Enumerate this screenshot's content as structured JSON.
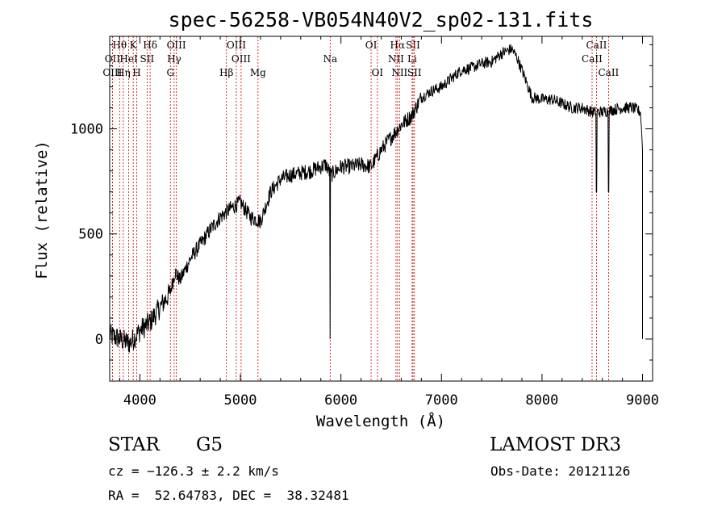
{
  "chart_data": {
    "type": "line",
    "title": "spec-56258-VB054N40V2_sp02-131.fits",
    "xlabel": "Wavelength (Å)",
    "ylabel": "Flux (relative)",
    "xlim": [
      3700,
      9100
    ],
    "ylim": [
      -200,
      1440
    ],
    "xticks": [
      4000,
      5000,
      6000,
      7000,
      8000,
      9000
    ],
    "xtick_labels": [
      "4000",
      "5000",
      "6000",
      "7000",
      "8000",
      "9000"
    ],
    "yticks": [
      0,
      500,
      1000
    ],
    "ytick_labels": [
      "0",
      "500",
      "1000"
    ],
    "series": [
      {
        "name": "flux",
        "color": "#000000",
        "anchors": [
          [
            3700,
            20
          ],
          [
            3800,
            0
          ],
          [
            3900,
            -20
          ],
          [
            4000,
            40
          ],
          [
            4100,
            80
          ],
          [
            4200,
            150
          ],
          [
            4300,
            220
          ],
          [
            4350,
            320
          ],
          [
            4400,
            280
          ],
          [
            4500,
            380
          ],
          [
            4600,
            450
          ],
          [
            4700,
            520
          ],
          [
            4800,
            580
          ],
          [
            4900,
            620
          ],
          [
            5000,
            650
          ],
          [
            5100,
            580
          ],
          [
            5200,
            560
          ],
          [
            5300,
            700
          ],
          [
            5400,
            760
          ],
          [
            5500,
            780
          ],
          [
            5600,
            790
          ],
          [
            5700,
            800
          ],
          [
            5800,
            820
          ],
          [
            5850,
            830
          ],
          [
            5900,
            780
          ],
          [
            6000,
            820
          ],
          [
            6100,
            820
          ],
          [
            6200,
            830
          ],
          [
            6300,
            820
          ],
          [
            6400,
            900
          ],
          [
            6500,
            960
          ],
          [
            6600,
            1020
          ],
          [
            6700,
            1060
          ],
          [
            6800,
            1150
          ],
          [
            6900,
            1180
          ],
          [
            7000,
            1200
          ],
          [
            7100,
            1240
          ],
          [
            7200,
            1280
          ],
          [
            7300,
            1290
          ],
          [
            7400,
            1310
          ],
          [
            7500,
            1320
          ],
          [
            7600,
            1360
          ],
          [
            7700,
            1380
          ],
          [
            7750,
            1340
          ],
          [
            7800,
            1280
          ],
          [
            7900,
            1150
          ],
          [
            8000,
            1140
          ],
          [
            8100,
            1140
          ],
          [
            8200,
            1120
          ],
          [
            8300,
            1100
          ],
          [
            8400,
            1100
          ],
          [
            8500,
            1080
          ],
          [
            8600,
            1080
          ],
          [
            8700,
            1090
          ],
          [
            8800,
            1100
          ],
          [
            8900,
            1100
          ],
          [
            8980,
            1080
          ],
          [
            9000,
            900
          ]
        ],
        "absorptions": [
          [
            5892,
            0
          ],
          [
            8542,
            700
          ],
          [
            8662,
            700
          ]
        ],
        "endpoint": [
          9000,
          0
        ]
      }
    ],
    "line_markers": [
      {
        "name": "Hθ",
        "wavelength": 3798,
        "row": 1
      },
      {
        "name": "OII",
        "wavelength": 3727,
        "row": 2
      },
      {
        "name": "OIII",
        "wavelength": 3727,
        "row": 3
      },
      {
        "name": "K",
        "wavelength": 3934,
        "row": 1
      },
      {
        "name": "HeI",
        "wavelength": 3889,
        "row": 2
      },
      {
        "name": "Hη",
        "wavelength": 3835,
        "row": 3
      },
      {
        "name": "H",
        "wavelength": 3969,
        "row": 3
      },
      {
        "name": "Hδ",
        "wavelength": 4102,
        "row": 1
      },
      {
        "name": "SII",
        "wavelength": 4072,
        "row": 2
      },
      {
        "name": "OIII",
        "wavelength": 4363,
        "row": 1
      },
      {
        "name": "Hγ",
        "wavelength": 4341,
        "row": 2
      },
      {
        "name": "G",
        "wavelength": 4304,
        "row": 3
      },
      {
        "name": "OIII",
        "wavelength": 4959,
        "row": 1
      },
      {
        "name": "OIII",
        "wavelength": 5007,
        "row": 2
      },
      {
        "name": "Hβ",
        "wavelength": 4861,
        "row": 3
      },
      {
        "name": "Mg",
        "wavelength": 5175,
        "row": 3
      },
      {
        "name": "Na",
        "wavelength": 5893,
        "row": 2
      },
      {
        "name": "OI",
        "wavelength": 6300,
        "row": 1
      },
      {
        "name": "OI",
        "wavelength": 6363,
        "row": 3
      },
      {
        "name": "Hα",
        "wavelength": 6563,
        "row": 1
      },
      {
        "name": "SII",
        "wavelength": 6717,
        "row": 1
      },
      {
        "name": "NII",
        "wavelength": 6548,
        "row": 2
      },
      {
        "name": "Li",
        "wavelength": 6708,
        "row": 2
      },
      {
        "name": "NII",
        "wavelength": 6583,
        "row": 3
      },
      {
        "name": "SII",
        "wavelength": 6731,
        "row": 3
      },
      {
        "name": "CaII",
        "wavelength": 8542,
        "row": 1
      },
      {
        "name": "CaII",
        "wavelength": 8498,
        "row": 2
      },
      {
        "name": "CaII",
        "wavelength": 8662,
        "row": 3
      }
    ]
  },
  "info": {
    "class_label": "STAR",
    "subclass": "G5",
    "survey": "LAMOST DR3",
    "velocity": "cz = −126.3 ± 2.2 km/s",
    "obs_date": "Obs-Date: 20121126",
    "coords": "RA =  52.64783, DEC =  38.32481"
  },
  "colors": {
    "line_marker": "#cc0000",
    "ink": "#000000"
  }
}
